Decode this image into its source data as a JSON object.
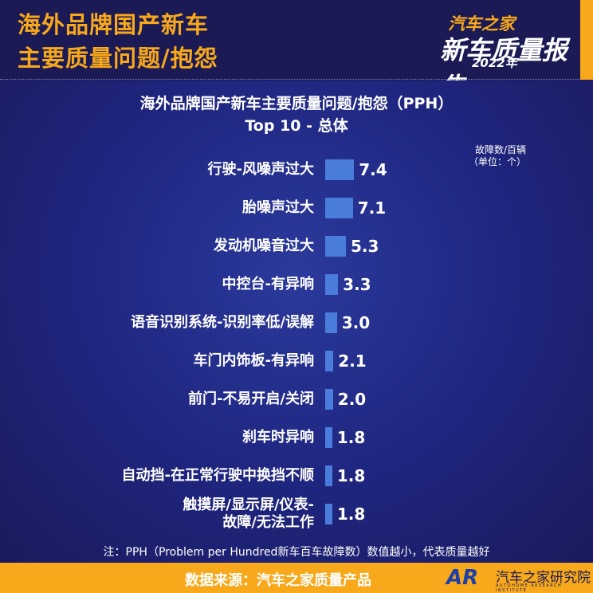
{
  "header": {
    "title_line1": "海外品牌国产新车",
    "title_line2": "主要质量问题/抱怨"
  },
  "logo": {
    "brand": "汽车之家",
    "title": "新车质量报告",
    "year": "2022年"
  },
  "chart_data": {
    "type": "bar",
    "orientation": "horizontal",
    "title": "海外品牌国产新车主要质量问题/抱怨（PPH）",
    "subtitle": "Top 10 - 总体",
    "unit_label": "故障数/百辆",
    "unit_sub": "（单位：个）",
    "categories": [
      "行驶-风噪声过大",
      "胎噪声过大",
      "发动机噪音过大",
      "中控台-有异响",
      "语音识别系统-识别率低/误解",
      "车门内饰板-有异响",
      "前门-不易开启/关闭",
      "刹车时异响",
      "自动挡-在正常行驶中换挡不顺",
      "触摸屏/显示屏/仪表-故障/无法工作"
    ],
    "values": [
      7.4,
      7.1,
      5.3,
      3.3,
      3.0,
      2.1,
      2.0,
      1.8,
      1.8,
      1.8
    ],
    "value_labels": [
      "7.4",
      "7.1",
      "5.3",
      "3.3",
      "3.0",
      "2.1",
      "2.0",
      "1.8",
      "1.8",
      "1.8"
    ],
    "bar_color": "#4a7ddb",
    "note": "注：PPH（Problem per Hundred新车百车故障数）数值越小，代表质量越好"
  },
  "footer": {
    "source": "数据来源：汽车之家质量产品",
    "org_logo": "AR",
    "org_name": "汽车之家研究院",
    "org_name_en": "AUTOHOME RESEARCH INSTITUTE"
  },
  "colors": {
    "accent": "#f7a81b",
    "background": "#1b1a55"
  }
}
